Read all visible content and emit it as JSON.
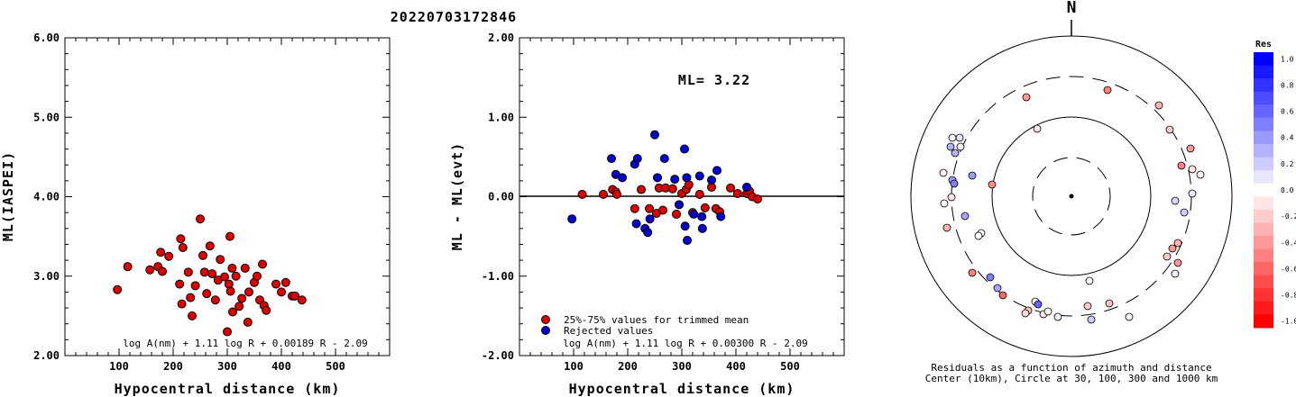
{
  "title": "20220703172846",
  "panel_left": {
    "ylabel": "ML(IASPEI)",
    "xlabel": "Hypocentral distance (km)",
    "formula": "log A(nm) + 1.11 log R + 0.00189 R - 2.09",
    "y_ticks": [
      "2.00",
      "3.00",
      "4.00",
      "5.00",
      "6.00"
    ],
    "x_ticks": [
      "100",
      "200",
      "300",
      "400",
      "500"
    ]
  },
  "panel_middle": {
    "ylabel": "ML - ML(evt)",
    "xlabel": "Hypocentral distance (km)",
    "ml_text": "ML= 3.22",
    "formula": "log A(nm) + 1.11 log R + 0.00300 R - 2.09",
    "legend": [
      "25%-75% values for trimmed mean",
      "Rejected values"
    ],
    "y_ticks": [
      "-2.00",
      "-1.00",
      "0.00",
      "1.00",
      "2.00"
    ],
    "x_ticks": [
      "100",
      "200",
      "300",
      "400",
      "500"
    ]
  },
  "panel_right": {
    "north_label": "N",
    "caption_line1": "Residuals as a function of azimuth and distance",
    "caption_line2": "Center (10km), Circle at 30, 100, 300 and 1000 km",
    "colorbar_title": "Res",
    "colorbar_ticks": [
      "1.0",
      "0.8",
      "0.6",
      "0.4",
      "0.2",
      "0.0",
      "-0.2",
      "-0.4",
      "-0.6",
      "-0.8",
      "-1.0"
    ]
  },
  "colors": {
    "trimmed": "#dd0000",
    "rejected": "#0000cc",
    "axis": "#000000"
  },
  "chart_data": [
    {
      "type": "scatter",
      "title": "20220703172846",
      "xlabel": "Hypocentral distance (km)",
      "ylabel": "ML(IASPEI)",
      "xlim": [
        0,
        600
      ],
      "ylim": [
        2.0,
        6.0
      ],
      "series": [
        {
          "values": [
            [
              97,
              2.83
            ],
            [
              116,
              3.12
            ],
            [
              157,
              3.08
            ],
            [
              172,
              3.12
            ],
            [
              177,
              3.3
            ],
            [
              180,
              3.06
            ],
            [
              192,
              3.25
            ],
            [
              212,
              2.9
            ],
            [
              214,
              3.47
            ],
            [
              216,
              2.65
            ],
            [
              218,
              3.36
            ],
            [
              228,
              3.05
            ],
            [
              232,
              2.73
            ],
            [
              235,
              2.5
            ],
            [
              241,
              2.88
            ],
            [
              250,
              3.72
            ],
            [
              255,
              3.26
            ],
            [
              258,
              3.05
            ],
            [
              262,
              2.78
            ],
            [
              268,
              3.38
            ],
            [
              272,
              3.03
            ],
            [
              278,
              2.7
            ],
            [
              283,
              2.95
            ],
            [
              287,
              3.21
            ],
            [
              295,
              2.99
            ],
            [
              300,
              2.3
            ],
            [
              303,
              2.9
            ],
            [
              305,
              3.5
            ],
            [
              306,
              2.81
            ],
            [
              309,
              3.1
            ],
            [
              310,
              2.55
            ],
            [
              316,
              3.0
            ],
            [
              322,
              2.62
            ],
            [
              327,
              2.72
            ],
            [
              333,
              3.1
            ],
            [
              338,
              2.42
            ],
            [
              340,
              2.8
            ],
            [
              350,
              2.92
            ],
            [
              355,
              3.0
            ],
            [
              360,
              2.7
            ],
            [
              365,
              3.15
            ],
            [
              368,
              2.63
            ],
            [
              372,
              2.57
            ],
            [
              390,
              2.9
            ],
            [
              400,
              2.8
            ],
            [
              408,
              2.92
            ],
            [
              420,
              2.75
            ],
            [
              425,
              2.75
            ],
            [
              438,
              2.7
            ]
          ]
        }
      ]
    },
    {
      "type": "scatter",
      "xlabel": "Hypocentral distance (km)",
      "ylabel": "ML - ML(evt)",
      "xlim": [
        0,
        600
      ],
      "ylim": [
        -2.0,
        2.0
      ],
      "series": [
        {
          "name": "25%-75% values for trimmed mean",
          "values": [
            [
              116,
              0.03
            ],
            [
              155,
              0.03
            ],
            [
              172,
              0.09
            ],
            [
              178,
              0.06
            ],
            [
              180,
              0.03
            ],
            [
              213,
              -0.15
            ],
            [
              225,
              0.09
            ],
            [
              240,
              -0.15
            ],
            [
              253,
              -0.21
            ],
            [
              258,
              0.11
            ],
            [
              265,
              -0.17
            ],
            [
              270,
              0.11
            ],
            [
              283,
              0.1
            ],
            [
              290,
              -0.22
            ],
            [
              300,
              0.04
            ],
            [
              308,
              0.09
            ],
            [
              313,
              0.15
            ],
            [
              320,
              -0.2
            ],
            [
              333,
              0.03
            ],
            [
              343,
              -0.14
            ],
            [
              355,
              0.12
            ],
            [
              363,
              -0.15
            ],
            [
              370,
              -0.19
            ],
            [
              390,
              0.11
            ],
            [
              403,
              0.04
            ],
            [
              420,
              0.04
            ],
            [
              425,
              0.07
            ],
            [
              430,
              0.0
            ],
            [
              440,
              -0.03
            ]
          ]
        },
        {
          "name": "Rejected values",
          "values": [
            [
              97,
              -0.28
            ],
            [
              170,
              0.48
            ],
            [
              178,
              0.28
            ],
            [
              190,
              0.24
            ],
            [
              213,
              0.41
            ],
            [
              216,
              -0.34
            ],
            [
              218,
              0.48
            ],
            [
              232,
              -0.4
            ],
            [
              237,
              -0.45
            ],
            [
              241,
              -0.28
            ],
            [
              250,
              0.78
            ],
            [
              255,
              0.24
            ],
            [
              268,
              0.48
            ],
            [
              287,
              0.22
            ],
            [
              295,
              -0.1
            ],
            [
              305,
              0.6
            ],
            [
              306,
              -0.37
            ],
            [
              309,
              0.24
            ],
            [
              310,
              -0.55
            ],
            [
              322,
              -0.22
            ],
            [
              333,
              0.26
            ],
            [
              337,
              -0.25
            ],
            [
              338,
              -0.4
            ],
            [
              355,
              0.21
            ],
            [
              365,
              0.33
            ],
            [
              372,
              -0.25
            ],
            [
              420,
              0.12
            ]
          ]
        }
      ]
    }
  ]
}
